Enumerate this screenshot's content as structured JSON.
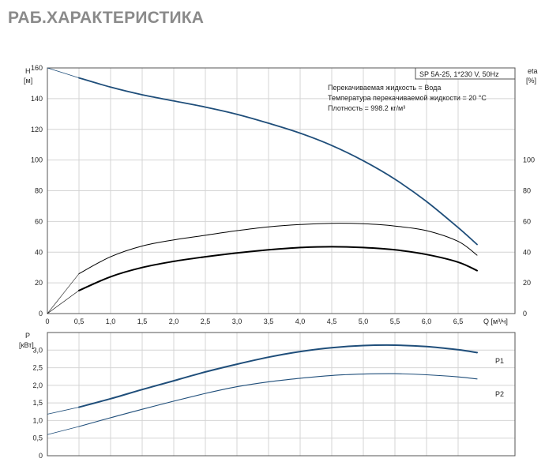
{
  "title": "РАБ.ХАРАКТЕРИСТИКА",
  "colors": {
    "accent": "#1f4e7a",
    "axis": "#555555",
    "grid": "#d4d4d4",
    "black": "#000000",
    "title": "#8a8a8a"
  },
  "chart_data": [
    {
      "type": "line",
      "name": "head-efficiency",
      "info_box": "SP 5A-25, 1*230 V, 50Hz",
      "notes": [
        "Перекачиваемая жидкость = Вода",
        "Температура перекачиваемой жидкости = 20 °C",
        "Плотность = 998.2 кг/м³"
      ],
      "ylabel_left": "H",
      "yunit_left": "[м]",
      "ylabel_right": "eta",
      "yunit_right": "[%]",
      "xlabel": "Q [м³/ч]",
      "xlim": [
        0,
        7.4
      ],
      "ylim": [
        0,
        160
      ],
      "ylim_right": [
        0,
        160
      ],
      "xticks": [
        0,
        0.5,
        1.0,
        1.5,
        2.0,
        2.5,
        3.0,
        3.5,
        4.0,
        4.5,
        5.0,
        5.5,
        6.0,
        6.5
      ],
      "xtick_labels": [
        "0",
        "0,5",
        "1,0",
        "1,5",
        "2,0",
        "2,5",
        "3,0",
        "3,5",
        "4,0",
        "4,5",
        "5,0",
        "5,5",
        "6,0",
        "6,5"
      ],
      "yticks_left": [
        0,
        20,
        40,
        60,
        80,
        100,
        120,
        140,
        160
      ],
      "yticks_right": [
        0,
        20,
        40,
        60,
        80,
        100
      ],
      "grid": true,
      "series": [
        {
          "x": [
            0,
            0.5,
            1,
            1.5,
            2,
            2.5,
            3,
            3.5,
            4,
            4.5,
            5,
            5.5,
            6,
            6.5,
            6.8
          ],
          "y": [
            160,
            153.5,
            147.5,
            142.5,
            138.5,
            134.5,
            129.8,
            124,
            117.5,
            109.5,
            99.5,
            87.5,
            73,
            56,
            45
          ],
          "color": "#1f4e7a",
          "extrapolated_below_x": 0.5
        },
        {
          "x": [
            0,
            0.5,
            1,
            1.5,
            2,
            2.5,
            3,
            3.5,
            4,
            4.5,
            5,
            5.5,
            6,
            6.5,
            6.8
          ],
          "y": [
            0,
            26,
            37,
            44,
            48,
            51,
            54,
            56.5,
            58,
            58.8,
            58.5,
            57,
            54,
            47,
            38
          ],
          "color": "#000000",
          "extrapolated_below_x": 0.5
        },
        {
          "x": [
            0,
            0.5,
            1,
            1.5,
            2,
            2.5,
            3,
            3.5,
            4,
            4.5,
            5,
            5.5,
            6,
            6.5,
            6.8
          ],
          "y": [
            0,
            15,
            24,
            30,
            34,
            37,
            39.5,
            41.5,
            43,
            43.5,
            43,
            41.5,
            38.5,
            33.5,
            28
          ],
          "color": "#000000",
          "extrapolated_below_x": 0.5
        }
      ]
    },
    {
      "type": "line",
      "name": "power",
      "ylabel": "P",
      "yunit": "[кВт]",
      "xlim": [
        0,
        7.4
      ],
      "ylim": [
        0,
        3.5
      ],
      "yticks": [
        0,
        0.5,
        1.0,
        1.5,
        2.0,
        2.5,
        3.0
      ],
      "ytick_labels": [
        "0",
        "0,5",
        "1,0",
        "1,5",
        "2,0",
        "2,5",
        "3,0"
      ],
      "grid": true,
      "series": [
        {
          "name": "P1",
          "x": [
            0,
            0.5,
            1,
            1.5,
            2,
            2.5,
            3,
            3.5,
            4,
            4.5,
            5,
            5.5,
            6,
            6.5,
            6.8
          ],
          "y": [
            1.18,
            1.38,
            1.62,
            1.88,
            2.13,
            2.38,
            2.6,
            2.8,
            2.96,
            3.07,
            3.13,
            3.14,
            3.1,
            3.01,
            2.93
          ],
          "color": "#1f4e7a",
          "extrapolated_below_x": 0.5
        },
        {
          "name": "P2",
          "x": [
            0,
            0.5,
            1,
            1.5,
            2,
            2.5,
            3,
            3.5,
            4,
            4.5,
            5,
            5.5,
            6,
            6.5,
            6.8
          ],
          "y": [
            0.6,
            0.83,
            1.08,
            1.32,
            1.55,
            1.77,
            1.96,
            2.1,
            2.2,
            2.28,
            2.32,
            2.33,
            2.3,
            2.24,
            2.18
          ],
          "color": "#1f4e7a",
          "extrapolated_below_x": 0.5
        }
      ]
    }
  ]
}
